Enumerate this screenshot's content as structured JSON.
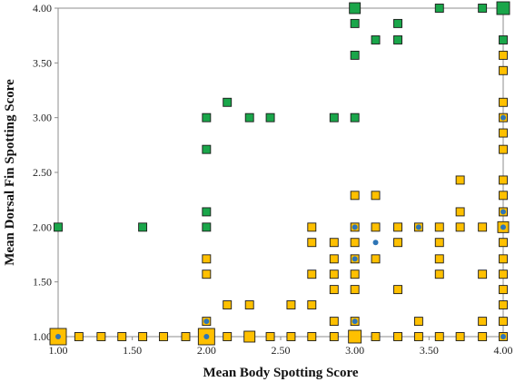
{
  "chart_data": {
    "type": "scatter",
    "xlabel": "Mean Body Spotting Score",
    "ylabel": "Mean Dorsal Fin Spotting Score",
    "xlim": [
      1.0,
      4.0
    ],
    "ylim": [
      1.0,
      4.0
    ],
    "x_ticks": [
      "1.00",
      "1.50",
      "2.00",
      "2.50",
      "3.00",
      "3.50",
      "4.00"
    ],
    "y_ticks": [
      "1.00",
      "1.50",
      "2.00",
      "2.50",
      "3.00",
      "3.50",
      "4.00"
    ],
    "grid": false,
    "colors": {
      "green": "#1aa64a",
      "yellow": "#ffc000",
      "blue": "#2e75b6",
      "outline": "#1a1a1a"
    },
    "series": [
      {
        "color": "green",
        "marker": "square",
        "points": [
          [
            1.0,
            2.0
          ],
          [
            1.57,
            2.0
          ],
          [
            2.0,
            2.0
          ],
          [
            2.0,
            2.14
          ],
          [
            2.0,
            2.71
          ],
          [
            2.0,
            3.0
          ],
          [
            2.14,
            3.14
          ],
          [
            2.29,
            3.0
          ],
          [
            2.43,
            3.0
          ],
          [
            2.86,
            3.0
          ],
          [
            3.0,
            3.0
          ],
          [
            3.0,
            3.57
          ],
          [
            3.0,
            3.86
          ],
          [
            3.0,
            4.0
          ],
          [
            3.14,
            3.71
          ],
          [
            3.29,
            3.71
          ],
          [
            3.29,
            3.86
          ],
          [
            3.57,
            4.0
          ],
          [
            3.86,
            4.0
          ],
          [
            4.0,
            3.71
          ],
          [
            4.0,
            4.0
          ]
        ]
      },
      {
        "color": "yellow",
        "marker": "square",
        "points": [
          [
            1.0,
            1.0
          ],
          [
            1.14,
            1.0
          ],
          [
            1.29,
            1.0
          ],
          [
            1.43,
            1.0
          ],
          [
            1.57,
            1.0
          ],
          [
            1.71,
            1.0
          ],
          [
            1.86,
            1.0
          ],
          [
            2.0,
            1.0
          ],
          [
            2.14,
            1.0
          ],
          [
            2.29,
            1.0
          ],
          [
            2.43,
            1.0
          ],
          [
            2.57,
            1.0
          ],
          [
            2.71,
            1.0
          ],
          [
            2.86,
            1.0
          ],
          [
            3.0,
            1.0
          ],
          [
            3.14,
            1.0
          ],
          [
            3.29,
            1.0
          ],
          [
            3.43,
            1.0
          ],
          [
            3.57,
            1.0
          ],
          [
            3.71,
            1.0
          ],
          [
            3.86,
            1.0
          ],
          [
            4.0,
            1.0
          ],
          [
            2.0,
            1.14
          ],
          [
            2.0,
            1.57
          ],
          [
            2.0,
            1.71
          ],
          [
            2.14,
            1.29
          ],
          [
            2.29,
            1.29
          ],
          [
            2.57,
            1.29
          ],
          [
            2.71,
            1.29
          ],
          [
            2.71,
            1.57
          ],
          [
            2.71,
            1.86
          ],
          [
            2.71,
            2.0
          ],
          [
            2.86,
            1.14
          ],
          [
            2.86,
            1.43
          ],
          [
            2.86,
            1.57
          ],
          [
            2.86,
            1.71
          ],
          [
            2.86,
            1.86
          ],
          [
            3.0,
            1.14
          ],
          [
            3.0,
            1.43
          ],
          [
            3.0,
            1.57
          ],
          [
            3.0,
            1.71
          ],
          [
            3.0,
            1.86
          ],
          [
            3.0,
            2.0
          ],
          [
            3.0,
            2.29
          ],
          [
            3.14,
            1.71
          ],
          [
            3.14,
            2.0
          ],
          [
            3.14,
            2.29
          ],
          [
            3.29,
            1.43
          ],
          [
            3.29,
            1.86
          ],
          [
            3.29,
            2.0
          ],
          [
            3.43,
            1.14
          ],
          [
            3.43,
            2.0
          ],
          [
            3.57,
            1.57
          ],
          [
            3.57,
            1.71
          ],
          [
            3.57,
            1.86
          ],
          [
            3.57,
            2.0
          ],
          [
            3.71,
            2.0
          ],
          [
            3.71,
            2.14
          ],
          [
            3.71,
            2.43
          ],
          [
            3.86,
            1.14
          ],
          [
            3.86,
            1.57
          ],
          [
            3.86,
            2.0
          ],
          [
            4.0,
            1.14
          ],
          [
            4.0,
            1.29
          ],
          [
            4.0,
            1.43
          ],
          [
            4.0,
            1.57
          ],
          [
            4.0,
            1.71
          ],
          [
            4.0,
            1.86
          ],
          [
            4.0,
            2.0
          ],
          [
            4.0,
            2.14
          ],
          [
            4.0,
            2.29
          ],
          [
            4.0,
            2.43
          ],
          [
            4.0,
            2.71
          ],
          [
            4.0,
            2.86
          ],
          [
            4.0,
            3.0
          ],
          [
            4.0,
            3.14
          ],
          [
            4.0,
            3.43
          ],
          [
            4.0,
            3.57
          ]
        ]
      },
      {
        "color": "blue",
        "marker": "circle",
        "points": [
          [
            1.0,
            1.0
          ],
          [
            2.0,
            1.0
          ],
          [
            2.0,
            1.14
          ],
          [
            3.0,
            1.14
          ],
          [
            3.0,
            1.71
          ],
          [
            3.0,
            2.0
          ],
          [
            3.14,
            1.86
          ],
          [
            3.43,
            2.0
          ],
          [
            4.0,
            1.0
          ],
          [
            4.0,
            2.0
          ],
          [
            4.0,
            2.14
          ],
          [
            4.0,
            3.0
          ]
        ]
      }
    ]
  }
}
